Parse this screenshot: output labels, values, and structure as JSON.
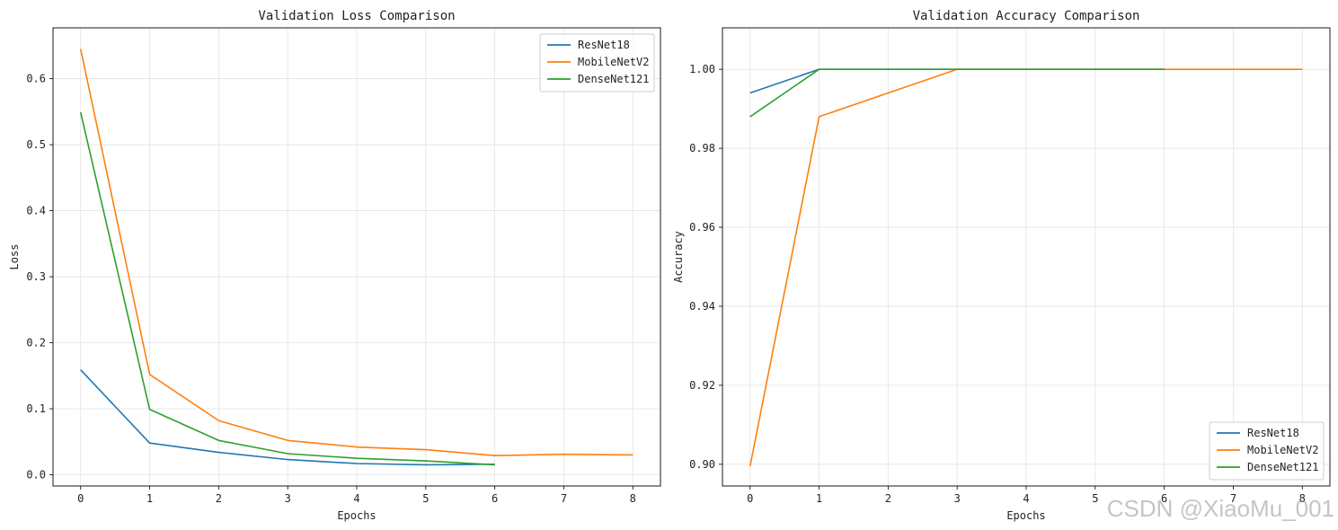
{
  "chart_data": [
    {
      "type": "line",
      "title": "Validation Loss Comparison",
      "xlabel": "Epochs",
      "ylabel": "Loss",
      "xlim": [
        -0.4,
        8.4
      ],
      "ylim": [
        -0.017,
        0.677
      ],
      "xticks": [
        0,
        1,
        2,
        3,
        4,
        5,
        6,
        7,
        8
      ],
      "yticks": [
        0.0,
        0.1,
        0.2,
        0.3,
        0.4,
        0.5,
        0.6
      ],
      "ytick_labels": [
        "0.0",
        "0.1",
        "0.2",
        "0.3",
        "0.4",
        "0.5",
        "0.6"
      ],
      "grid": true,
      "legend_position": "top-right",
      "series": [
        {
          "name": "ResNet18",
          "color": "#1f77b4",
          "x": [
            0,
            1,
            2,
            3,
            4,
            5,
            6
          ],
          "values": [
            0.159,
            0.048,
            0.034,
            0.023,
            0.017,
            0.015,
            0.016
          ]
        },
        {
          "name": "MobileNetV2",
          "color": "#ff7f0e",
          "x": [
            0,
            1,
            2,
            3,
            4,
            5,
            6,
            7,
            8
          ],
          "values": [
            0.645,
            0.152,
            0.082,
            0.052,
            0.042,
            0.038,
            0.029,
            0.031,
            0.03
          ]
        },
        {
          "name": "DenseNet121",
          "color": "#2ca02c",
          "x": [
            0,
            1,
            2,
            3,
            4,
            5,
            6
          ],
          "values": [
            0.549,
            0.099,
            0.052,
            0.032,
            0.025,
            0.021,
            0.015
          ]
        }
      ]
    },
    {
      "type": "line",
      "title": "Validation Accuracy Comparison",
      "xlabel": "Epochs",
      "ylabel": "Accuracy",
      "xlim": [
        -0.4,
        8.4
      ],
      "ylim": [
        0.8945,
        1.0105
      ],
      "xticks": [
        0,
        1,
        2,
        3,
        4,
        5,
        6,
        7,
        8
      ],
      "yticks": [
        0.9,
        0.92,
        0.94,
        0.96,
        0.98,
        1.0
      ],
      "ytick_labels": [
        "0.90",
        "0.92",
        "0.94",
        "0.96",
        "0.98",
        "1.00"
      ],
      "grid": true,
      "legend_position": "bottom-right",
      "series": [
        {
          "name": "ResNet18",
          "color": "#1f77b4",
          "x": [
            0,
            1,
            2,
            3,
            4,
            5,
            6
          ],
          "values": [
            0.994,
            1.0,
            1.0,
            1.0,
            1.0,
            1.0,
            1.0
          ]
        },
        {
          "name": "MobileNetV2",
          "color": "#ff7f0e",
          "x": [
            0,
            1,
            2,
            3,
            4,
            5,
            6,
            7,
            8
          ],
          "values": [
            0.8995,
            0.988,
            0.994,
            1.0,
            1.0,
            1.0,
            1.0,
            1.0,
            1.0
          ]
        },
        {
          "name": "DenseNet121",
          "color": "#2ca02c",
          "x": [
            0,
            1,
            2,
            3,
            4,
            5,
            6
          ],
          "values": [
            0.988,
            1.0,
            1.0,
            1.0,
            1.0,
            1.0,
            1.0
          ]
        }
      ]
    }
  ],
  "watermark": "CSDN @XiaoMu_001"
}
